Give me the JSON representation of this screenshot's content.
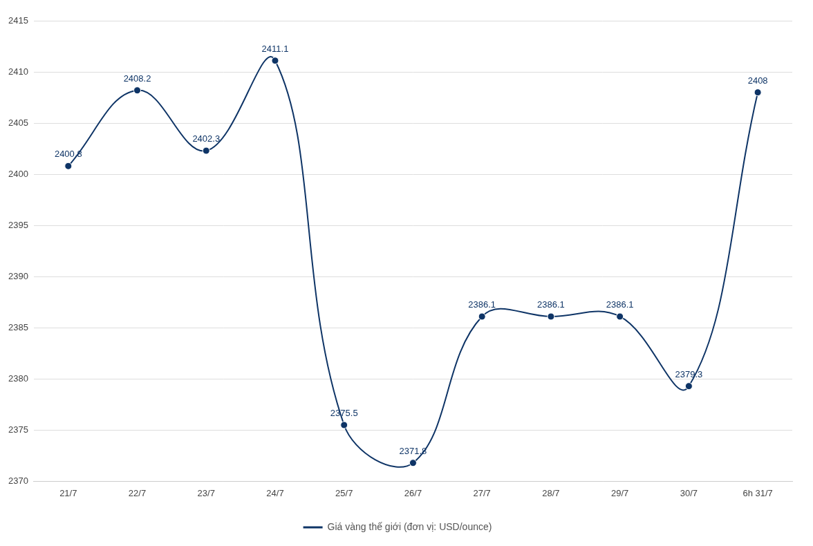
{
  "chart_data": {
    "type": "line",
    "categories": [
      "21/7",
      "22/7",
      "23/7",
      "24/7",
      "25/7",
      "26/7",
      "27/7",
      "28/7",
      "29/7",
      "30/7",
      "6h 31/7"
    ],
    "series": [
      {
        "name": "Giá vàng thế giới (đơn vị: USD/ounce)",
        "color": "#0e3466",
        "values": [
          2400.8,
          2408.2,
          2402.3,
          2411.1,
          2375.5,
          2371.8,
          2386.1,
          2386.1,
          2386.1,
          2379.3,
          2408
        ],
        "marker": "circle",
        "line_style": "solid"
      }
    ],
    "ylim": [
      2370,
      2415
    ],
    "yticks": [
      2370,
      2375,
      2380,
      2385,
      2390,
      2395,
      2400,
      2405,
      2410,
      2415
    ],
    "grid": true,
    "legend": "bottom",
    "data_labels": true
  }
}
